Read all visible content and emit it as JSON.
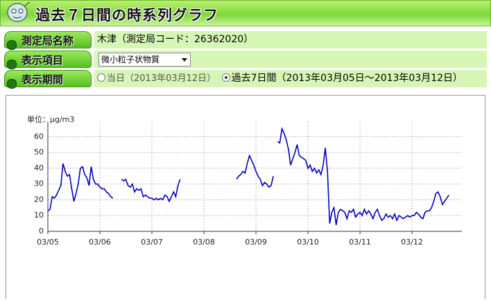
{
  "header": {
    "title": "過去７日間の時系列グラフ"
  },
  "form": {
    "station": {
      "label": "測定局名称",
      "value": "木津（測定局コード：26362020）"
    },
    "item": {
      "label": "表示項目",
      "value": "微小粒子状物質"
    },
    "period": {
      "label": "表示期間",
      "options": [
        "当日（2013年03月12日）",
        "過去7日間（2013年03月05日～2013年03月12日）"
      ]
    }
  },
  "chart_data": {
    "type": "line",
    "ylabel": "単位：μg/m3",
    "color": "#0000c0",
    "grid": true,
    "xlim": [
      0,
      191
    ],
    "xticks": [
      {
        "value": 0,
        "label": "03/05"
      },
      {
        "value": 24,
        "label": "03/06"
      },
      {
        "value": 48,
        "label": "03/07"
      },
      {
        "value": 72,
        "label": "03/08"
      },
      {
        "value": 96,
        "label": "03/09"
      },
      {
        "value": 120,
        "label": "03/10"
      },
      {
        "value": 144,
        "label": "03/11"
      },
      {
        "value": 168,
        "label": "03/12"
      }
    ],
    "ylim": [
      0,
      65
    ],
    "yticks": [
      0,
      10,
      20,
      30,
      40,
      50,
      60
    ],
    "values": [
      13,
      14,
      22,
      21,
      23,
      26,
      29,
      43,
      38,
      35,
      36,
      27,
      19,
      24,
      30,
      40,
      41,
      36,
      34,
      29,
      41,
      33,
      30,
      30,
      28,
      27,
      27,
      25,
      24,
      22,
      21,
      null,
      null,
      null,
      33,
      32,
      33,
      29,
      28,
      30,
      25,
      27,
      26,
      27,
      22,
      23,
      22,
      21,
      21,
      20,
      21,
      20,
      21,
      20,
      23,
      22,
      19,
      22,
      25,
      22,
      29,
      33,
      null,
      null,
      null,
      null,
      null,
      null,
      null,
      null,
      null,
      null,
      null,
      null,
      null,
      null,
      null,
      null,
      null,
      null,
      null,
      null,
      null,
      null,
      null,
      null,
      null,
      33,
      35,
      36,
      38,
      37,
      43,
      48,
      45,
      42,
      38,
      35,
      33,
      29,
      31,
      30,
      28,
      29,
      35,
      null,
      57,
      56,
      65,
      62,
      58,
      52,
      42,
      46,
      50,
      55,
      48,
      47,
      46,
      45,
      40,
      42,
      38,
      40,
      37,
      39,
      36,
      42,
      53,
      38,
      5,
      12,
      15,
      4,
      12,
      14,
      13,
      12,
      8,
      13,
      12,
      14,
      9,
      11,
      12,
      10,
      14,
      11,
      13,
      11,
      8,
      12,
      14,
      10,
      7,
      8,
      11,
      9,
      10,
      8,
      11,
      7,
      10,
      9,
      8,
      9,
      10,
      9,
      10,
      10,
      12,
      11,
      9,
      8,
      12,
      13,
      13,
      15,
      19,
      24,
      25,
      22,
      17,
      19,
      21,
      23
    ]
  }
}
